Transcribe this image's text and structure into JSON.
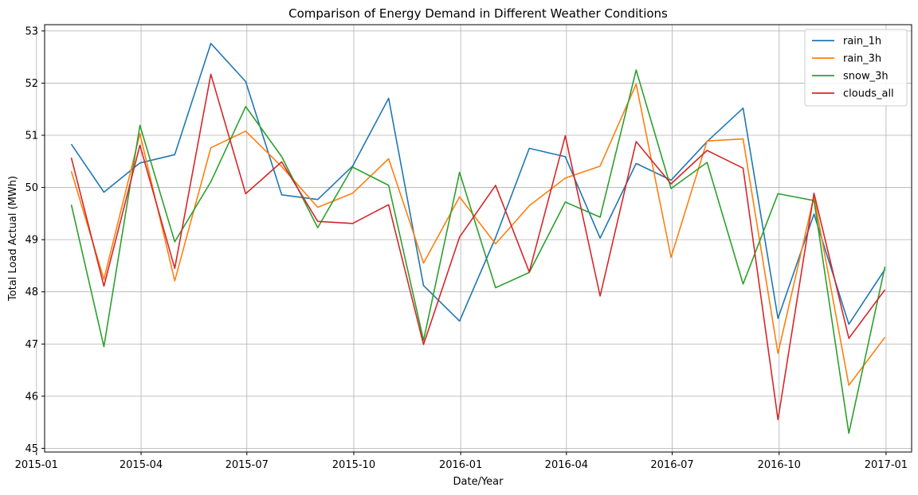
{
  "chart_data": {
    "type": "line",
    "title": "Comparison of Energy Demand in Different Weather Conditions",
    "xlabel": "Date/Year",
    "ylabel": "Total Load Actual (MWh)",
    "x": [
      "2015-01-31",
      "2015-02-28",
      "2015-03-31",
      "2015-04-30",
      "2015-05-31",
      "2015-06-30",
      "2015-07-31",
      "2015-08-31",
      "2015-09-30",
      "2015-10-31",
      "2015-11-30",
      "2015-12-31",
      "2016-01-31",
      "2016-02-29",
      "2016-03-31",
      "2016-04-30",
      "2016-05-31",
      "2016-06-30",
      "2016-07-31",
      "2016-08-31",
      "2016-09-30",
      "2016-10-31",
      "2016-11-30",
      "2016-12-31"
    ],
    "xlim": [
      "2015-01-08",
      "2017-01-23"
    ],
    "ylim": [
      44.93,
      53.12
    ],
    "xticks": [
      {
        "date": "2015-01-01",
        "label": "2015-01"
      },
      {
        "date": "2015-04-01",
        "label": "2015-04"
      },
      {
        "date": "2015-07-01",
        "label": "2015-07"
      },
      {
        "date": "2015-10-01",
        "label": "2015-10"
      },
      {
        "date": "2016-01-01",
        "label": "2016-01"
      },
      {
        "date": "2016-04-01",
        "label": "2016-04"
      },
      {
        "date": "2016-07-01",
        "label": "2016-07"
      },
      {
        "date": "2016-10-01",
        "label": "2016-10"
      },
      {
        "date": "2017-01-01",
        "label": "2017-01"
      }
    ],
    "yticks": [
      45,
      46,
      47,
      48,
      49,
      50,
      51,
      52,
      53
    ],
    "grid": true,
    "legend_position": "top-right",
    "series": [
      {
        "name": "rain_1h",
        "color": "#1f77b4",
        "values": [
          50.83,
          49.91,
          50.47,
          50.63,
          52.76,
          52.03,
          49.86,
          49.77,
          50.41,
          51.71,
          48.12,
          47.44,
          49.04,
          50.75,
          50.59,
          49.03,
          50.46,
          50.14,
          50.88,
          51.52,
          47.49,
          49.49,
          47.38,
          48.43
        ]
      },
      {
        "name": "rain_3h",
        "color": "#ff7f0e",
        "values": [
          50.31,
          48.24,
          51.03,
          48.21,
          50.76,
          51.08,
          50.4,
          49.62,
          49.89,
          50.55,
          48.55,
          49.82,
          48.92,
          49.65,
          50.18,
          50.41,
          51.98,
          48.66,
          50.89,
          50.93,
          46.82,
          49.83,
          46.21,
          47.13
        ]
      },
      {
        "name": "snow_3h",
        "color": "#2ca02c",
        "values": [
          49.67,
          46.95,
          51.19,
          48.96,
          50.11,
          51.55,
          50.59,
          49.23,
          50.39,
          50.04,
          47.07,
          50.29,
          48.08,
          48.37,
          49.72,
          49.43,
          52.25,
          49.98,
          50.48,
          48.15,
          49.88,
          49.75,
          45.29,
          48.48
        ]
      },
      {
        "name": "clouds_all",
        "color": "#d62728",
        "values": [
          50.57,
          48.11,
          50.81,
          48.45,
          52.17,
          49.88,
          50.49,
          49.35,
          49.31,
          49.67,
          46.99,
          49.05,
          50.04,
          48.38,
          50.99,
          47.92,
          50.88,
          50.07,
          50.71,
          50.37,
          45.55,
          49.89,
          47.11,
          48.04
        ]
      }
    ]
  }
}
